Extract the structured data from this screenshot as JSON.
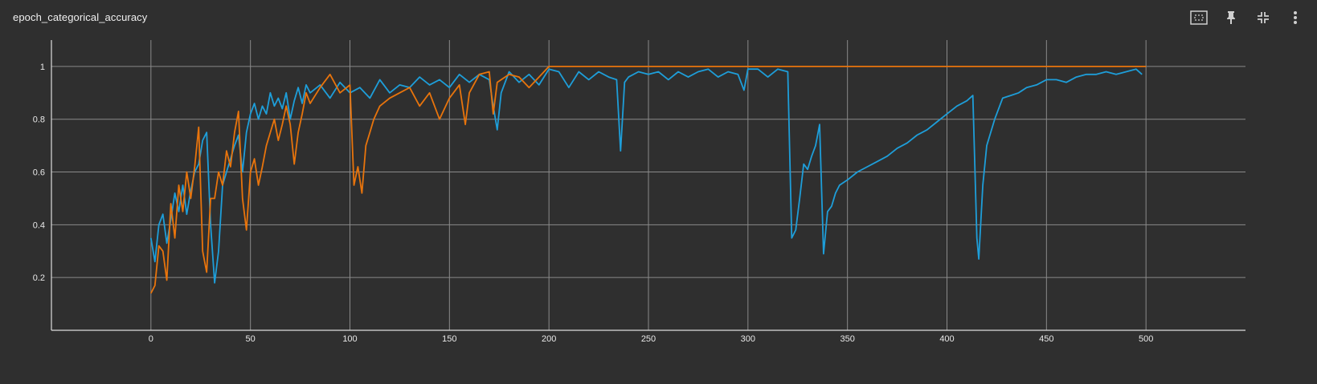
{
  "header": {
    "title": "epoch_categorical_accuracy"
  },
  "icons": {
    "fit": "fit-domain-icon",
    "pin": "pin-icon",
    "collapse": "collapse-icon",
    "more": "more-vert-icon"
  },
  "colors": {
    "background": "#2f2f2f",
    "grid": "#8a8a8a",
    "axis": "#dddddd",
    "series_blue": "#1e9ed9",
    "series_orange": "#e8740c"
  },
  "chart_data": {
    "type": "line",
    "title": "epoch_categorical_accuracy",
    "xlabel": "",
    "ylabel": "",
    "xlim": [
      -50,
      550
    ],
    "ylim": [
      0,
      1.1
    ],
    "x_ticks": [
      "0",
      "50",
      "100",
      "150",
      "200",
      "250",
      "300",
      "350",
      "400",
      "450",
      "500"
    ],
    "y_ticks": [
      "0.2",
      "0.4",
      "0.6",
      "0.8",
      "1"
    ],
    "grid": true,
    "legend": "none",
    "series": [
      {
        "color": "#1e9ed9",
        "points": [
          [
            0,
            0.35
          ],
          [
            2,
            0.26
          ],
          [
            4,
            0.4
          ],
          [
            6,
            0.44
          ],
          [
            8,
            0.33
          ],
          [
            10,
            0.42
          ],
          [
            12,
            0.52
          ],
          [
            14,
            0.45
          ],
          [
            16,
            0.55
          ],
          [
            18,
            0.44
          ],
          [
            20,
            0.53
          ],
          [
            22,
            0.6
          ],
          [
            24,
            0.63
          ],
          [
            26,
            0.72
          ],
          [
            28,
            0.75
          ],
          [
            30,
            0.4
          ],
          [
            32,
            0.18
          ],
          [
            34,
            0.3
          ],
          [
            36,
            0.55
          ],
          [
            38,
            0.6
          ],
          [
            40,
            0.65
          ],
          [
            42,
            0.7
          ],
          [
            44,
            0.74
          ],
          [
            46,
            0.6
          ],
          [
            48,
            0.75
          ],
          [
            50,
            0.82
          ],
          [
            52,
            0.86
          ],
          [
            54,
            0.8
          ],
          [
            56,
            0.85
          ],
          [
            58,
            0.82
          ],
          [
            60,
            0.9
          ],
          [
            62,
            0.85
          ],
          [
            64,
            0.88
          ],
          [
            66,
            0.84
          ],
          [
            68,
            0.9
          ],
          [
            70,
            0.8
          ],
          [
            72,
            0.87
          ],
          [
            74,
            0.92
          ],
          [
            76,
            0.86
          ],
          [
            78,
            0.93
          ],
          [
            80,
            0.9
          ],
          [
            85,
            0.93
          ],
          [
            90,
            0.88
          ],
          [
            95,
            0.94
          ],
          [
            100,
            0.9
          ],
          [
            105,
            0.92
          ],
          [
            110,
            0.88
          ],
          [
            115,
            0.95
          ],
          [
            120,
            0.9
          ],
          [
            125,
            0.93
          ],
          [
            130,
            0.92
          ],
          [
            135,
            0.96
          ],
          [
            140,
            0.93
          ],
          [
            145,
            0.95
          ],
          [
            150,
            0.92
          ],
          [
            155,
            0.97
          ],
          [
            160,
            0.94
          ],
          [
            165,
            0.97
          ],
          [
            170,
            0.95
          ],
          [
            172,
            0.85
          ],
          [
            174,
            0.76
          ],
          [
            176,
            0.9
          ],
          [
            180,
            0.98
          ],
          [
            185,
            0.94
          ],
          [
            190,
            0.97
          ],
          [
            195,
            0.93
          ],
          [
            200,
            0.99
          ],
          [
            205,
            0.98
          ],
          [
            210,
            0.92
          ],
          [
            215,
            0.98
          ],
          [
            220,
            0.95
          ],
          [
            225,
            0.98
          ],
          [
            230,
            0.96
          ],
          [
            234,
            0.95
          ],
          [
            236,
            0.68
          ],
          [
            238,
            0.94
          ],
          [
            240,
            0.96
          ],
          [
            245,
            0.98
          ],
          [
            250,
            0.97
          ],
          [
            255,
            0.98
          ],
          [
            260,
            0.95
          ],
          [
            265,
            0.98
          ],
          [
            270,
            0.96
          ],
          [
            275,
            0.98
          ],
          [
            280,
            0.99
          ],
          [
            285,
            0.96
          ],
          [
            290,
            0.98
          ],
          [
            295,
            0.97
          ],
          [
            298,
            0.91
          ],
          [
            300,
            0.99
          ],
          [
            305,
            0.99
          ],
          [
            310,
            0.96
          ],
          [
            315,
            0.99
          ],
          [
            320,
            0.98
          ],
          [
            322,
            0.35
          ],
          [
            324,
            0.38
          ],
          [
            326,
            0.5
          ],
          [
            328,
            0.63
          ],
          [
            330,
            0.61
          ],
          [
            332,
            0.66
          ],
          [
            334,
            0.7
          ],
          [
            336,
            0.78
          ],
          [
            338,
            0.29
          ],
          [
            340,
            0.45
          ],
          [
            342,
            0.47
          ],
          [
            344,
            0.52
          ],
          [
            346,
            0.55
          ],
          [
            350,
            0.57
          ],
          [
            355,
            0.6
          ],
          [
            360,
            0.62
          ],
          [
            365,
            0.64
          ],
          [
            370,
            0.66
          ],
          [
            375,
            0.69
          ],
          [
            380,
            0.71
          ],
          [
            385,
            0.74
          ],
          [
            390,
            0.76
          ],
          [
            395,
            0.79
          ],
          [
            400,
            0.82
          ],
          [
            405,
            0.85
          ],
          [
            410,
            0.87
          ],
          [
            413,
            0.89
          ],
          [
            415,
            0.35
          ],
          [
            416,
            0.27
          ],
          [
            418,
            0.55
          ],
          [
            420,
            0.7
          ],
          [
            424,
            0.8
          ],
          [
            428,
            0.88
          ],
          [
            432,
            0.89
          ],
          [
            436,
            0.9
          ],
          [
            440,
            0.92
          ],
          [
            445,
            0.93
          ],
          [
            450,
            0.95
          ],
          [
            455,
            0.95
          ],
          [
            460,
            0.94
          ],
          [
            465,
            0.96
          ],
          [
            470,
            0.97
          ],
          [
            475,
            0.97
          ],
          [
            480,
            0.98
          ],
          [
            485,
            0.97
          ],
          [
            490,
            0.98
          ],
          [
            495,
            0.99
          ],
          [
            498,
            0.97
          ]
        ]
      },
      {
        "color": "#e8740c",
        "points": [
          [
            0,
            0.14
          ],
          [
            2,
            0.17
          ],
          [
            4,
            0.32
          ],
          [
            6,
            0.3
          ],
          [
            8,
            0.19
          ],
          [
            10,
            0.48
          ],
          [
            12,
            0.35
          ],
          [
            14,
            0.55
          ],
          [
            16,
            0.45
          ],
          [
            18,
            0.6
          ],
          [
            20,
            0.5
          ],
          [
            22,
            0.62
          ],
          [
            24,
            0.77
          ],
          [
            26,
            0.3
          ],
          [
            28,
            0.22
          ],
          [
            30,
            0.5
          ],
          [
            32,
            0.5
          ],
          [
            34,
            0.6
          ],
          [
            36,
            0.55
          ],
          [
            38,
            0.68
          ],
          [
            40,
            0.62
          ],
          [
            42,
            0.75
          ],
          [
            44,
            0.83
          ],
          [
            46,
            0.5
          ],
          [
            48,
            0.38
          ],
          [
            50,
            0.6
          ],
          [
            52,
            0.65
          ],
          [
            54,
            0.55
          ],
          [
            56,
            0.62
          ],
          [
            58,
            0.7
          ],
          [
            60,
            0.75
          ],
          [
            62,
            0.8
          ],
          [
            64,
            0.72
          ],
          [
            66,
            0.78
          ],
          [
            68,
            0.85
          ],
          [
            70,
            0.78
          ],
          [
            72,
            0.63
          ],
          [
            74,
            0.75
          ],
          [
            76,
            0.82
          ],
          [
            78,
            0.9
          ],
          [
            80,
            0.86
          ],
          [
            85,
            0.92
          ],
          [
            90,
            0.97
          ],
          [
            95,
            0.9
          ],
          [
            100,
            0.93
          ],
          [
            102,
            0.55
          ],
          [
            104,
            0.62
          ],
          [
            106,
            0.52
          ],
          [
            108,
            0.7
          ],
          [
            110,
            0.75
          ],
          [
            112,
            0.8
          ],
          [
            115,
            0.85
          ],
          [
            120,
            0.88
          ],
          [
            125,
            0.9
          ],
          [
            130,
            0.92
          ],
          [
            135,
            0.85
          ],
          [
            140,
            0.9
          ],
          [
            145,
            0.8
          ],
          [
            150,
            0.88
          ],
          [
            155,
            0.93
          ],
          [
            158,
            0.78
          ],
          [
            160,
            0.9
          ],
          [
            165,
            0.97
          ],
          [
            170,
            0.98
          ],
          [
            172,
            0.82
          ],
          [
            174,
            0.94
          ],
          [
            180,
            0.97
          ],
          [
            185,
            0.96
          ],
          [
            190,
            0.92
          ],
          [
            195,
            0.96
          ],
          [
            200,
            1.0
          ],
          [
            250,
            1.0
          ],
          [
            300,
            1.0
          ],
          [
            350,
            1.0
          ],
          [
            400,
            1.0
          ],
          [
            450,
            1.0
          ],
          [
            500,
            1.0
          ]
        ]
      }
    ]
  }
}
